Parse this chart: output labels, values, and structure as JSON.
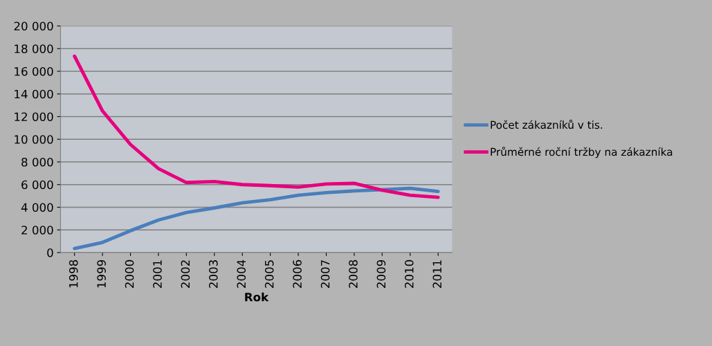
{
  "chart_data": {
    "type": "line",
    "xlabel": "Rok",
    "categories": [
      "1998",
      "1999",
      "2000",
      "2001",
      "2002",
      "2003",
      "2004",
      "2005",
      "2006",
      "2007",
      "2008",
      "2009",
      "2010",
      "2011"
    ],
    "series": [
      {
        "name": "Počet zákazníků v tis.",
        "color": "#4a7ebb",
        "values": [
          360,
          900,
          1930,
          2870,
          3540,
          3940,
          4390,
          4660,
          5060,
          5290,
          5440,
          5550,
          5670,
          5400
        ]
      },
      {
        "name": "Průměrné roční tržby na zákazníka",
        "color": "#e6007e",
        "values": [
          17330,
          12500,
          9540,
          7410,
          6180,
          6270,
          6000,
          5910,
          5780,
          6050,
          6110,
          5510,
          5060,
          4880
        ]
      }
    ],
    "ylim": [
      0,
      20000
    ],
    "yticks": [
      {
        "value": 0,
        "label": "0"
      },
      {
        "value": 2000,
        "label": "2 000"
      },
      {
        "value": 4000,
        "label": "4 000"
      },
      {
        "value": 6000,
        "label": "6 000"
      },
      {
        "value": 8000,
        "label": "8 000"
      },
      {
        "value": 10000,
        "label": "10 000"
      },
      {
        "value": 12000,
        "label": "12 000"
      },
      {
        "value": 14000,
        "label": "14 000"
      },
      {
        "value": 16000,
        "label": "16 000"
      },
      {
        "value": 18000,
        "label": "18 000"
      },
      {
        "value": 20000,
        "label": "20 000"
      }
    ],
    "grid": "y",
    "legend": "right",
    "marker": "none",
    "line_style": "solid"
  }
}
